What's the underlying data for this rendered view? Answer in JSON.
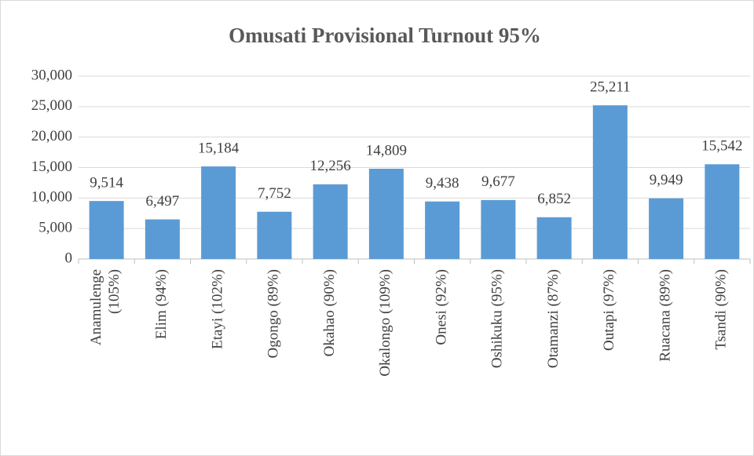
{
  "chart_data": {
    "type": "bar",
    "title": "Omusati Provisional Turnout 95%",
    "categories": [
      "Anamulenge (105%)",
      "Elim (94%)",
      "Etayi (102%)",
      "Ogongo (89%)",
      "Okahao (90%)",
      "Okalongo (109%)",
      "Onesi (92%)",
      "Oshikuku (95%)",
      "Otamanzi (87%)",
      "Outapi (97%)",
      "Ruacana (89%)",
      "Tsandi (90%)"
    ],
    "values": [
      9514,
      6497,
      15184,
      7752,
      12256,
      14809,
      9438,
      9677,
      6852,
      25211,
      9949,
      15542
    ],
    "value_labels": [
      "9,514",
      "6,497",
      "15,184",
      "7,752",
      "12,256",
      "14,809",
      "9,438",
      "9,677",
      "6,852",
      "25,211",
      "9,949",
      "15,542"
    ],
    "color": "#5b9bd5",
    "ylim": [
      0,
      30000
    ],
    "yticks": [
      0,
      {
        "value": 5000,
        "label": "5,000"
      },
      {
        "value": 10000,
        "label": "10,000"
      },
      {
        "value": 15000,
        "label": "15,000"
      },
      {
        "value": 20000,
        "label": "20,000"
      },
      {
        "value": 25000,
        "label": "25,000"
      },
      {
        "value": 30000,
        "label": "30,000"
      }
    ],
    "grid": true
  }
}
